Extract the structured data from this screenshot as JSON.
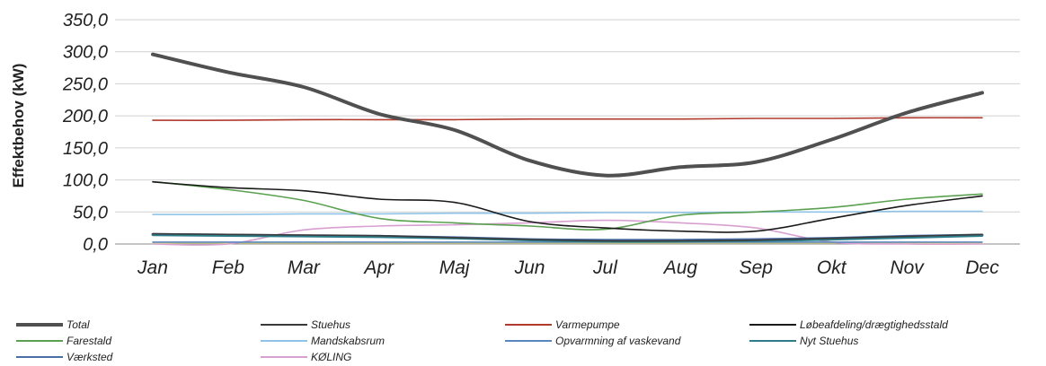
{
  "chart_data": {
    "type": "line",
    "ylabel": "Effektbehov (kW)",
    "xlabel": "",
    "ylim": [
      0,
      350
    ],
    "yticks": [
      "0,0",
      "50,0",
      "100,0",
      "150,0",
      "200,0",
      "250,0",
      "300,0",
      "350,0"
    ],
    "grid": true,
    "legend_position": "bottom",
    "categories": [
      "Jan",
      "Feb",
      "Mar",
      "Apr",
      "Maj",
      "Jun",
      "Jul",
      "Aug",
      "Sep",
      "Okt",
      "Nov",
      "Dec"
    ],
    "series": [
      {
        "name": "Total",
        "color": "#505050",
        "values": [
          296,
          268,
          245,
          203,
          178,
          130,
          107,
          120,
          128,
          163,
          205,
          236
        ]
      },
      {
        "name": "Stuehus",
        "color": "#3a3a3a",
        "values": [
          16,
          15,
          14,
          13,
          10,
          7,
          5,
          5,
          6,
          9,
          12,
          15
        ]
      },
      {
        "name": "Varmepumpe",
        "color": "#b03a2e",
        "values": [
          193,
          193,
          194,
          194,
          194,
          195,
          195,
          195,
          196,
          196,
          197,
          197
        ]
      },
      {
        "name": "Løbeafdeling/drægtighedsstald",
        "color": "#1a1a1a",
        "values": [
          97,
          88,
          83,
          70,
          65,
          35,
          25,
          20,
          20,
          40,
          60,
          75
        ]
      },
      {
        "name": "Farestald",
        "color": "#5aa050",
        "values": [
          97,
          85,
          68,
          40,
          33,
          28,
          23,
          45,
          50,
          57,
          70,
          78
        ]
      },
      {
        "name": "Mandskabsrum",
        "color": "#8fc4e8",
        "values": [
          46,
          46,
          47,
          47,
          48,
          48,
          49,
          49,
          50,
          50,
          51,
          51
        ]
      },
      {
        "name": "Opvarmning af vaskevand",
        "color": "#5a86c0",
        "values": [
          3,
          3,
          3,
          3,
          3,
          3,
          3,
          3,
          3,
          3,
          3,
          3
        ]
      },
      {
        "name": "Nyt Stuehus",
        "color": "#2e7d8a",
        "values": [
          14,
          13,
          12,
          11,
          9,
          6,
          4,
          4,
          5,
          7,
          10,
          13
        ]
      },
      {
        "name": "Værksted",
        "color": "#4a6fa8",
        "values": [
          15,
          14,
          13,
          12,
          10,
          7,
          6,
          6,
          7,
          9,
          12,
          14
        ]
      },
      {
        "name": "KØLING",
        "color": "#d8a0d0",
        "values": [
          0,
          0,
          22,
          28,
          30,
          33,
          37,
          33,
          25,
          3,
          0,
          0
        ]
      }
    ],
    "extra_lines": [
      {
        "color": "#e8e060",
        "values": [
          2,
          2,
          2,
          2,
          2,
          2,
          2,
          2,
          2,
          2,
          2,
          2
        ]
      }
    ]
  }
}
